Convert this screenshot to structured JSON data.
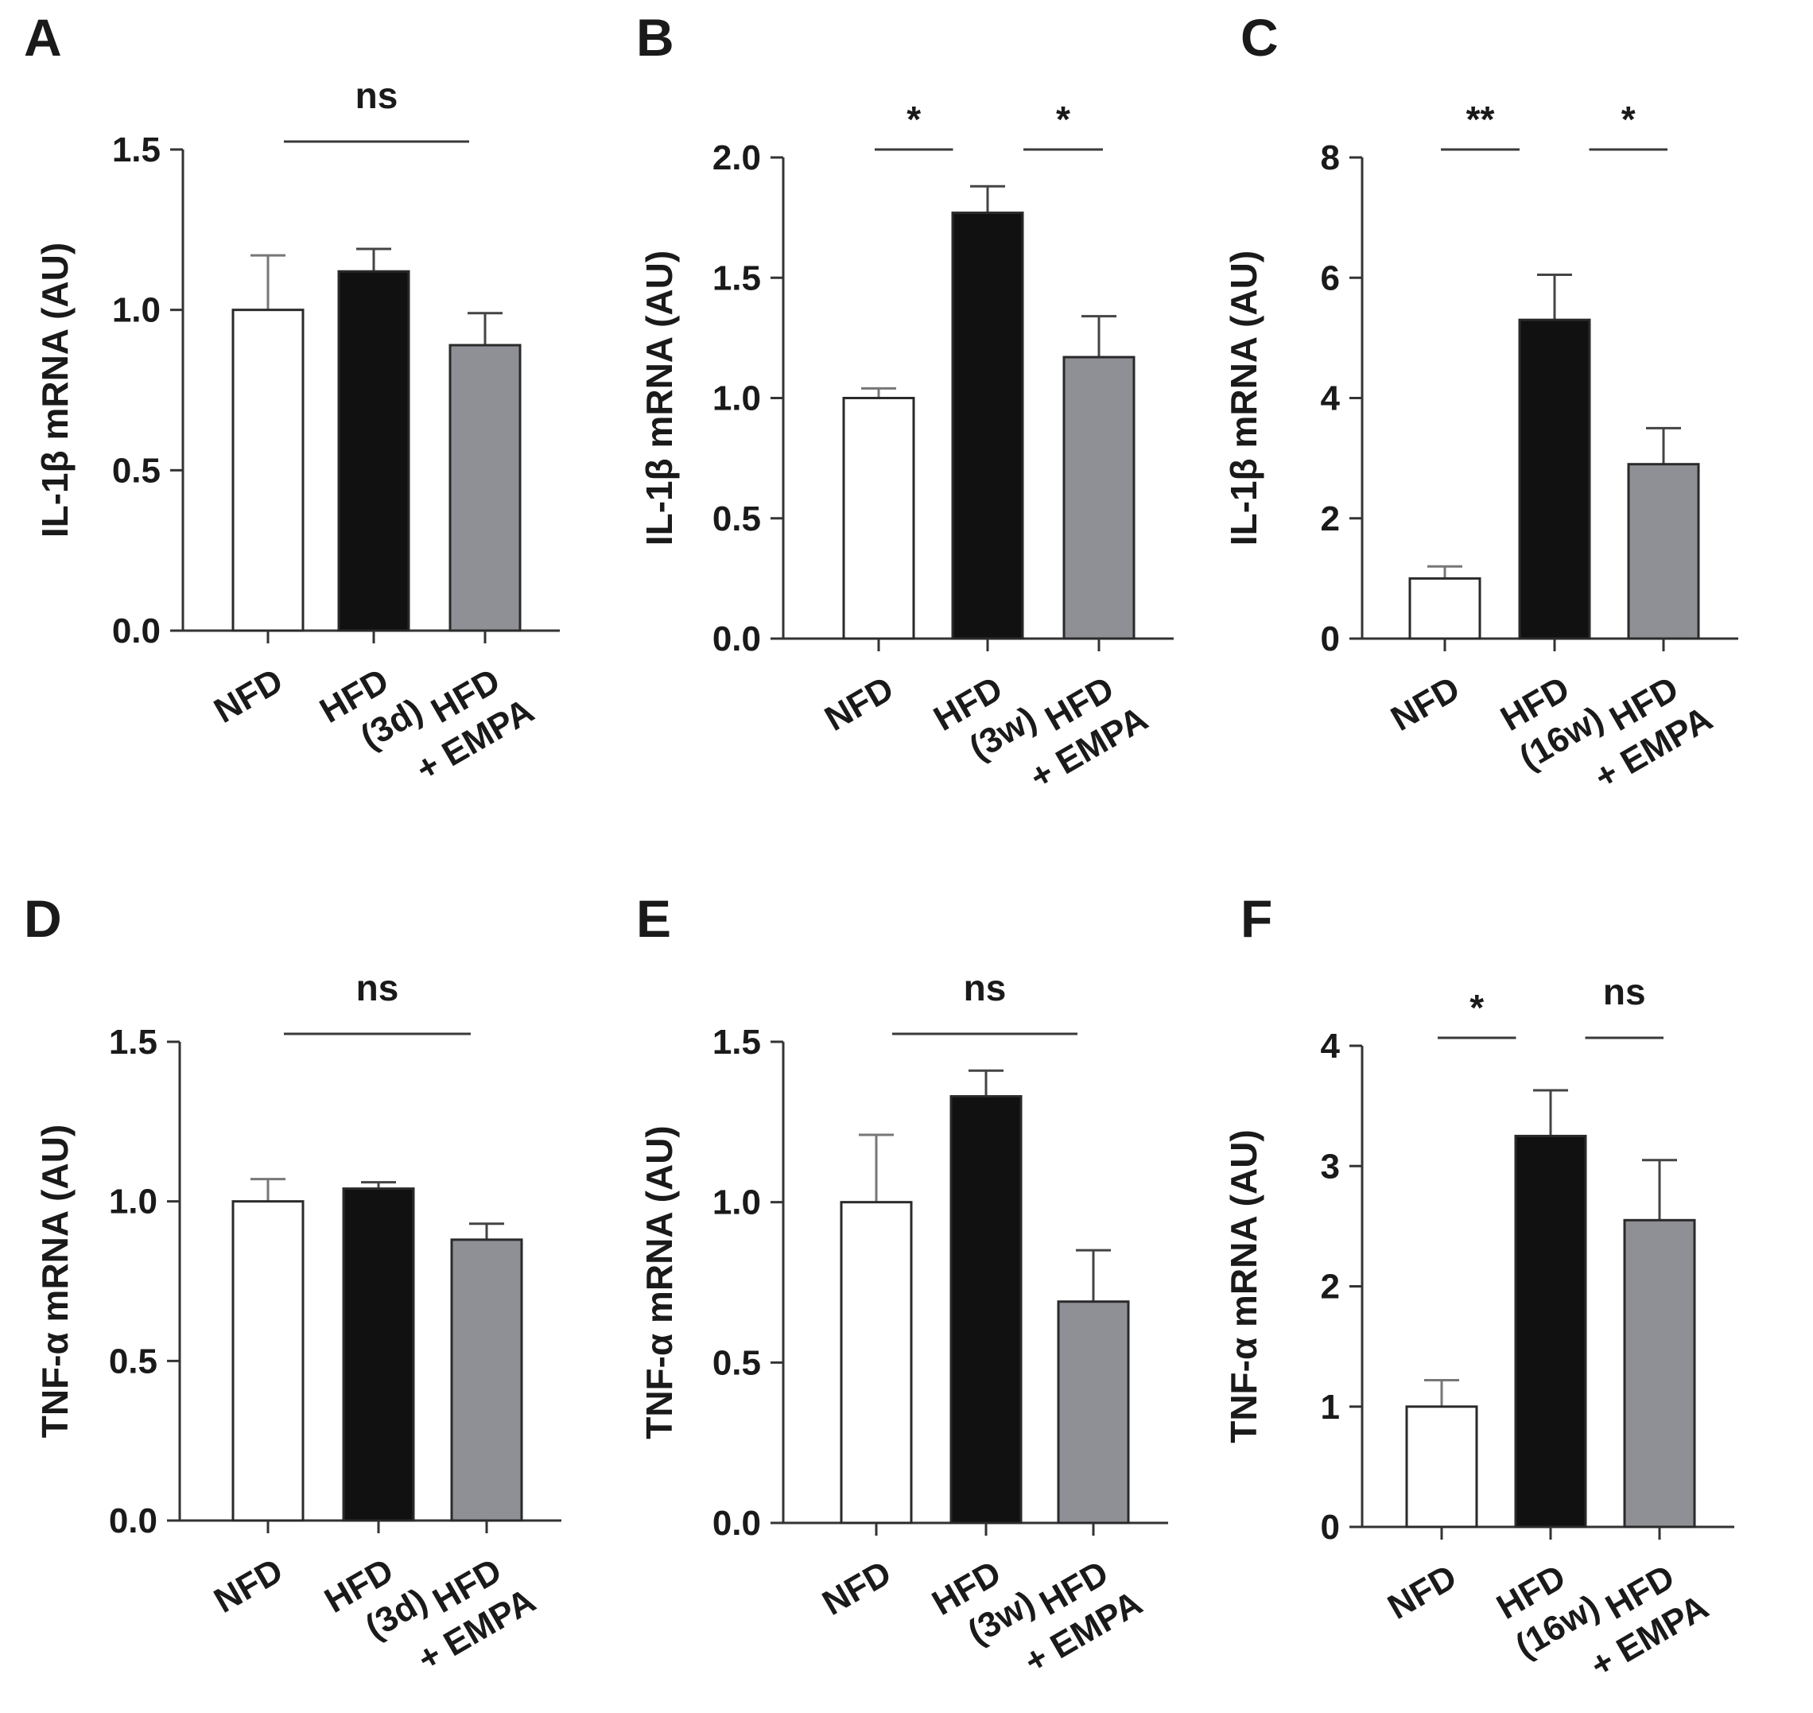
{
  "colors": {
    "NFD": "#ffffff",
    "HFD": "#111111",
    "HFD + EMPA": "#8e9096",
    "axis": "#333333",
    "bar_stroke": "#2a2a2a"
  },
  "chart_data": [
    {
      "panel": "A",
      "type": "bar",
      "ylabel": "IL-1β mRNA (AU)",
      "ylim": [
        0,
        1.5
      ],
      "yticks": [
        "0.0",
        "0.5",
        "1.0",
        "1.5"
      ],
      "ytick_values": [
        0,
        0.5,
        1.0,
        1.5
      ],
      "categories": [
        "NFD",
        "HFD (3d)",
        "HFD + EMPA"
      ],
      "category_labels": [
        [
          "NFD"
        ],
        [
          "HFD",
          "(3d)"
        ],
        [
          "HFD",
          "+ EMPA"
        ]
      ],
      "values": [
        1.0,
        1.12,
        0.89
      ],
      "errors": [
        0.17,
        0.07,
        0.1
      ],
      "significance": [
        {
          "from": 0,
          "to": 2,
          "label": "ns"
        }
      ]
    },
    {
      "panel": "B",
      "type": "bar",
      "ylabel": "IL-1β mRNA (AU)",
      "ylim": [
        0,
        2.0
      ],
      "yticks": [
        "0.0",
        "0.5",
        "1.0",
        "1.5",
        "2.0"
      ],
      "ytick_values": [
        0,
        0.5,
        1.0,
        1.5,
        2.0
      ],
      "categories": [
        "NFD",
        "HFD (3w)",
        "HFD + EMPA"
      ],
      "category_labels": [
        [
          "NFD"
        ],
        [
          "HFD",
          "(3w)"
        ],
        [
          "HFD",
          "+ EMPA"
        ]
      ],
      "values": [
        1.0,
        1.77,
        1.17
      ],
      "errors": [
        0.04,
        0.11,
        0.17
      ],
      "significance": [
        {
          "from": 0,
          "to": 1,
          "label": "*"
        },
        {
          "from": 1,
          "to": 2,
          "label": "*"
        }
      ]
    },
    {
      "panel": "C",
      "type": "bar",
      "ylabel": "IL-1β mRNA (AU)",
      "ylim": [
        0,
        8
      ],
      "yticks": [
        "0",
        "2",
        "4",
        "6",
        "8"
      ],
      "ytick_values": [
        0,
        2,
        4,
        6,
        8
      ],
      "categories": [
        "NFD",
        "HFD (16w)",
        "HFD + EMPA"
      ],
      "category_labels": [
        [
          "NFD"
        ],
        [
          "HFD",
          "(16w)"
        ],
        [
          "HFD",
          "+ EMPA"
        ]
      ],
      "values": [
        1.0,
        5.3,
        2.9
      ],
      "errors": [
        0.2,
        0.75,
        0.6
      ],
      "significance": [
        {
          "from": 0,
          "to": 1,
          "label": "**"
        },
        {
          "from": 1,
          "to": 2,
          "label": "*"
        }
      ]
    },
    {
      "panel": "D",
      "type": "bar",
      "ylabel": "TNF-α mRNA (AU)",
      "ylim": [
        0,
        1.5
      ],
      "yticks": [
        "0.0",
        "0.5",
        "1.0",
        "1.5"
      ],
      "ytick_values": [
        0,
        0.5,
        1.0,
        1.5
      ],
      "categories": [
        "NFD",
        "HFD (3d)",
        "HFD + EMPA"
      ],
      "category_labels": [
        [
          "NFD"
        ],
        [
          "HFD",
          "(3d)"
        ],
        [
          "HFD",
          "+ EMPA"
        ]
      ],
      "values": [
        1.0,
        1.04,
        0.88
      ],
      "errors": [
        0.07,
        0.02,
        0.05
      ],
      "significance": [
        {
          "from": 0,
          "to": 2,
          "label": "ns"
        }
      ]
    },
    {
      "panel": "E",
      "type": "bar",
      "ylabel": "TNF-α mRNA (AU)",
      "ylim": [
        0,
        1.5
      ],
      "yticks": [
        "0.0",
        "0.5",
        "1.0",
        "1.5"
      ],
      "ytick_values": [
        0,
        0.5,
        1.0,
        1.5
      ],
      "categories": [
        "NFD",
        "HFD (3w)",
        "HFD + EMPA"
      ],
      "category_labels": [
        [
          "NFD"
        ],
        [
          "HFD",
          "(3w)"
        ],
        [
          "HFD",
          "+ EMPA"
        ]
      ],
      "values": [
        1.0,
        1.33,
        0.69
      ],
      "errors": [
        0.21,
        0.08,
        0.16
      ],
      "significance": [
        {
          "from": 0,
          "to": 2,
          "label": "ns"
        }
      ]
    },
    {
      "panel": "F",
      "type": "bar",
      "ylabel": "TNF-α mRNA (AU)",
      "ylim": [
        0,
        4
      ],
      "yticks": [
        "0",
        "1",
        "2",
        "3",
        "4"
      ],
      "ytick_values": [
        0,
        1,
        2,
        3,
        4
      ],
      "categories": [
        "NFD",
        "HFD (16w)",
        "HFD + EMPA"
      ],
      "category_labels": [
        [
          "NFD"
        ],
        [
          "HFD",
          "(16w)"
        ],
        [
          "HFD",
          "+ EMPA"
        ]
      ],
      "values": [
        1.0,
        3.25,
        2.55
      ],
      "errors": [
        0.22,
        0.38,
        0.5
      ],
      "significance": [
        {
          "from": 0,
          "to": 1,
          "label": "*"
        },
        {
          "from": 1,
          "to": 2,
          "label": "ns"
        }
      ]
    }
  ]
}
